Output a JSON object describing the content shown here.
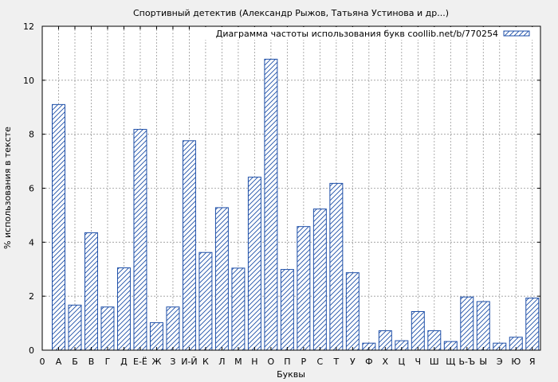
{
  "chart_data": {
    "type": "bar",
    "title": "Спортивный детектив (Александр Рыжов, Татьяна Устинова и др...)",
    "xlabel": "Буквы",
    "ylabel": "% использования в тексте",
    "legend": "Диаграмма частоты использования букв coollib.net/b/770254",
    "legend_position": "top-right",
    "grid": true,
    "ylim": [
      0,
      12
    ],
    "yticks": [
      "0",
      "2",
      "4",
      "6",
      "8",
      "10",
      "12"
    ],
    "xtick_zero": "0",
    "categories": [
      "А",
      "Б",
      "В",
      "Г",
      "Д",
      "Е-Ё",
      "Ж",
      "З",
      "И-Й",
      "К",
      "Л",
      "М",
      "Н",
      "О",
      "П",
      "Р",
      "С",
      "Т",
      "У",
      "Ф",
      "Х",
      "Ц",
      "Ч",
      "Ш",
      "Щ",
      "Ь-Ъ",
      "Ы",
      "Э",
      "Ю",
      "Я"
    ],
    "values": [
      9.1,
      1.67,
      4.35,
      1.6,
      3.05,
      8.18,
      1.02,
      1.6,
      7.76,
      3.62,
      5.28,
      3.04,
      6.41,
      10.78,
      2.99,
      4.58,
      5.23,
      6.18,
      2.87,
      0.26,
      0.72,
      0.35,
      1.43,
      0.72,
      0.32,
      1.97,
      1.8,
      0.26,
      0.48,
      1.93
    ],
    "colors": {
      "bar": "#1e4fa8",
      "frame": "#000000",
      "grid": "#999999",
      "background": "#f0f0f0",
      "plot_background": "#ffffff"
    }
  }
}
